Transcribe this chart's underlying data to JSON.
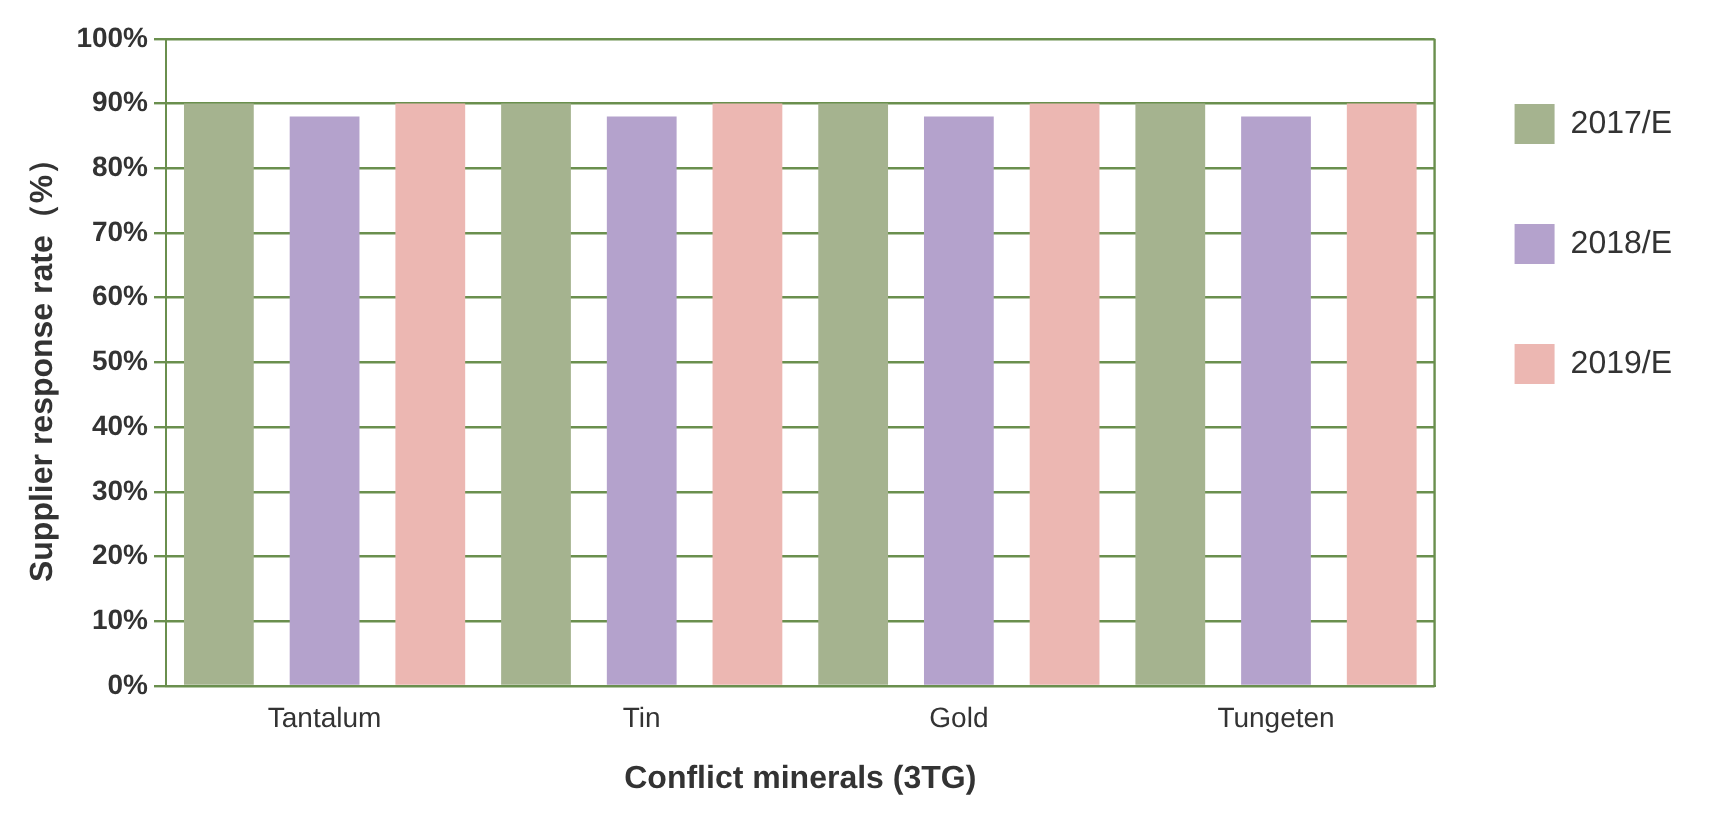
{
  "chart_data": {
    "type": "bar",
    "xlabel": "Conflict minerals (3TG)",
    "ylabel": "Supplier response rate（%）",
    "categories": [
      "Tantalum",
      "Tin",
      "Gold",
      "Tungeten"
    ],
    "series": [
      {
        "name": "2017/E",
        "color": "#a5b38f",
        "values": [
          90,
          90,
          90,
          90
        ]
      },
      {
        "name": "2018/E",
        "color": "#b4a2cc",
        "values": [
          88,
          88,
          88,
          88
        ]
      },
      {
        "name": "2019/E",
        "color": "#ecb7b2",
        "values": [
          90,
          90,
          90,
          90
        ]
      }
    ],
    "ylim": [
      0,
      100
    ],
    "yticks": [
      {
        "value": 0,
        "label": "0%"
      },
      {
        "value": 10,
        "label": "10%"
      },
      {
        "value": 20,
        "label": "20%"
      },
      {
        "value": 30,
        "label": "30%"
      },
      {
        "value": 40,
        "label": "40%"
      },
      {
        "value": 50,
        "label": "50%"
      },
      {
        "value": 60,
        "label": "60%"
      },
      {
        "value": 70,
        "label": "70%"
      },
      {
        "value": 80,
        "label": "80%"
      },
      {
        "value": 90,
        "label": "90%"
      },
      {
        "value": 100,
        "label": "100%"
      }
    ],
    "grid": "y",
    "legend": "right"
  }
}
